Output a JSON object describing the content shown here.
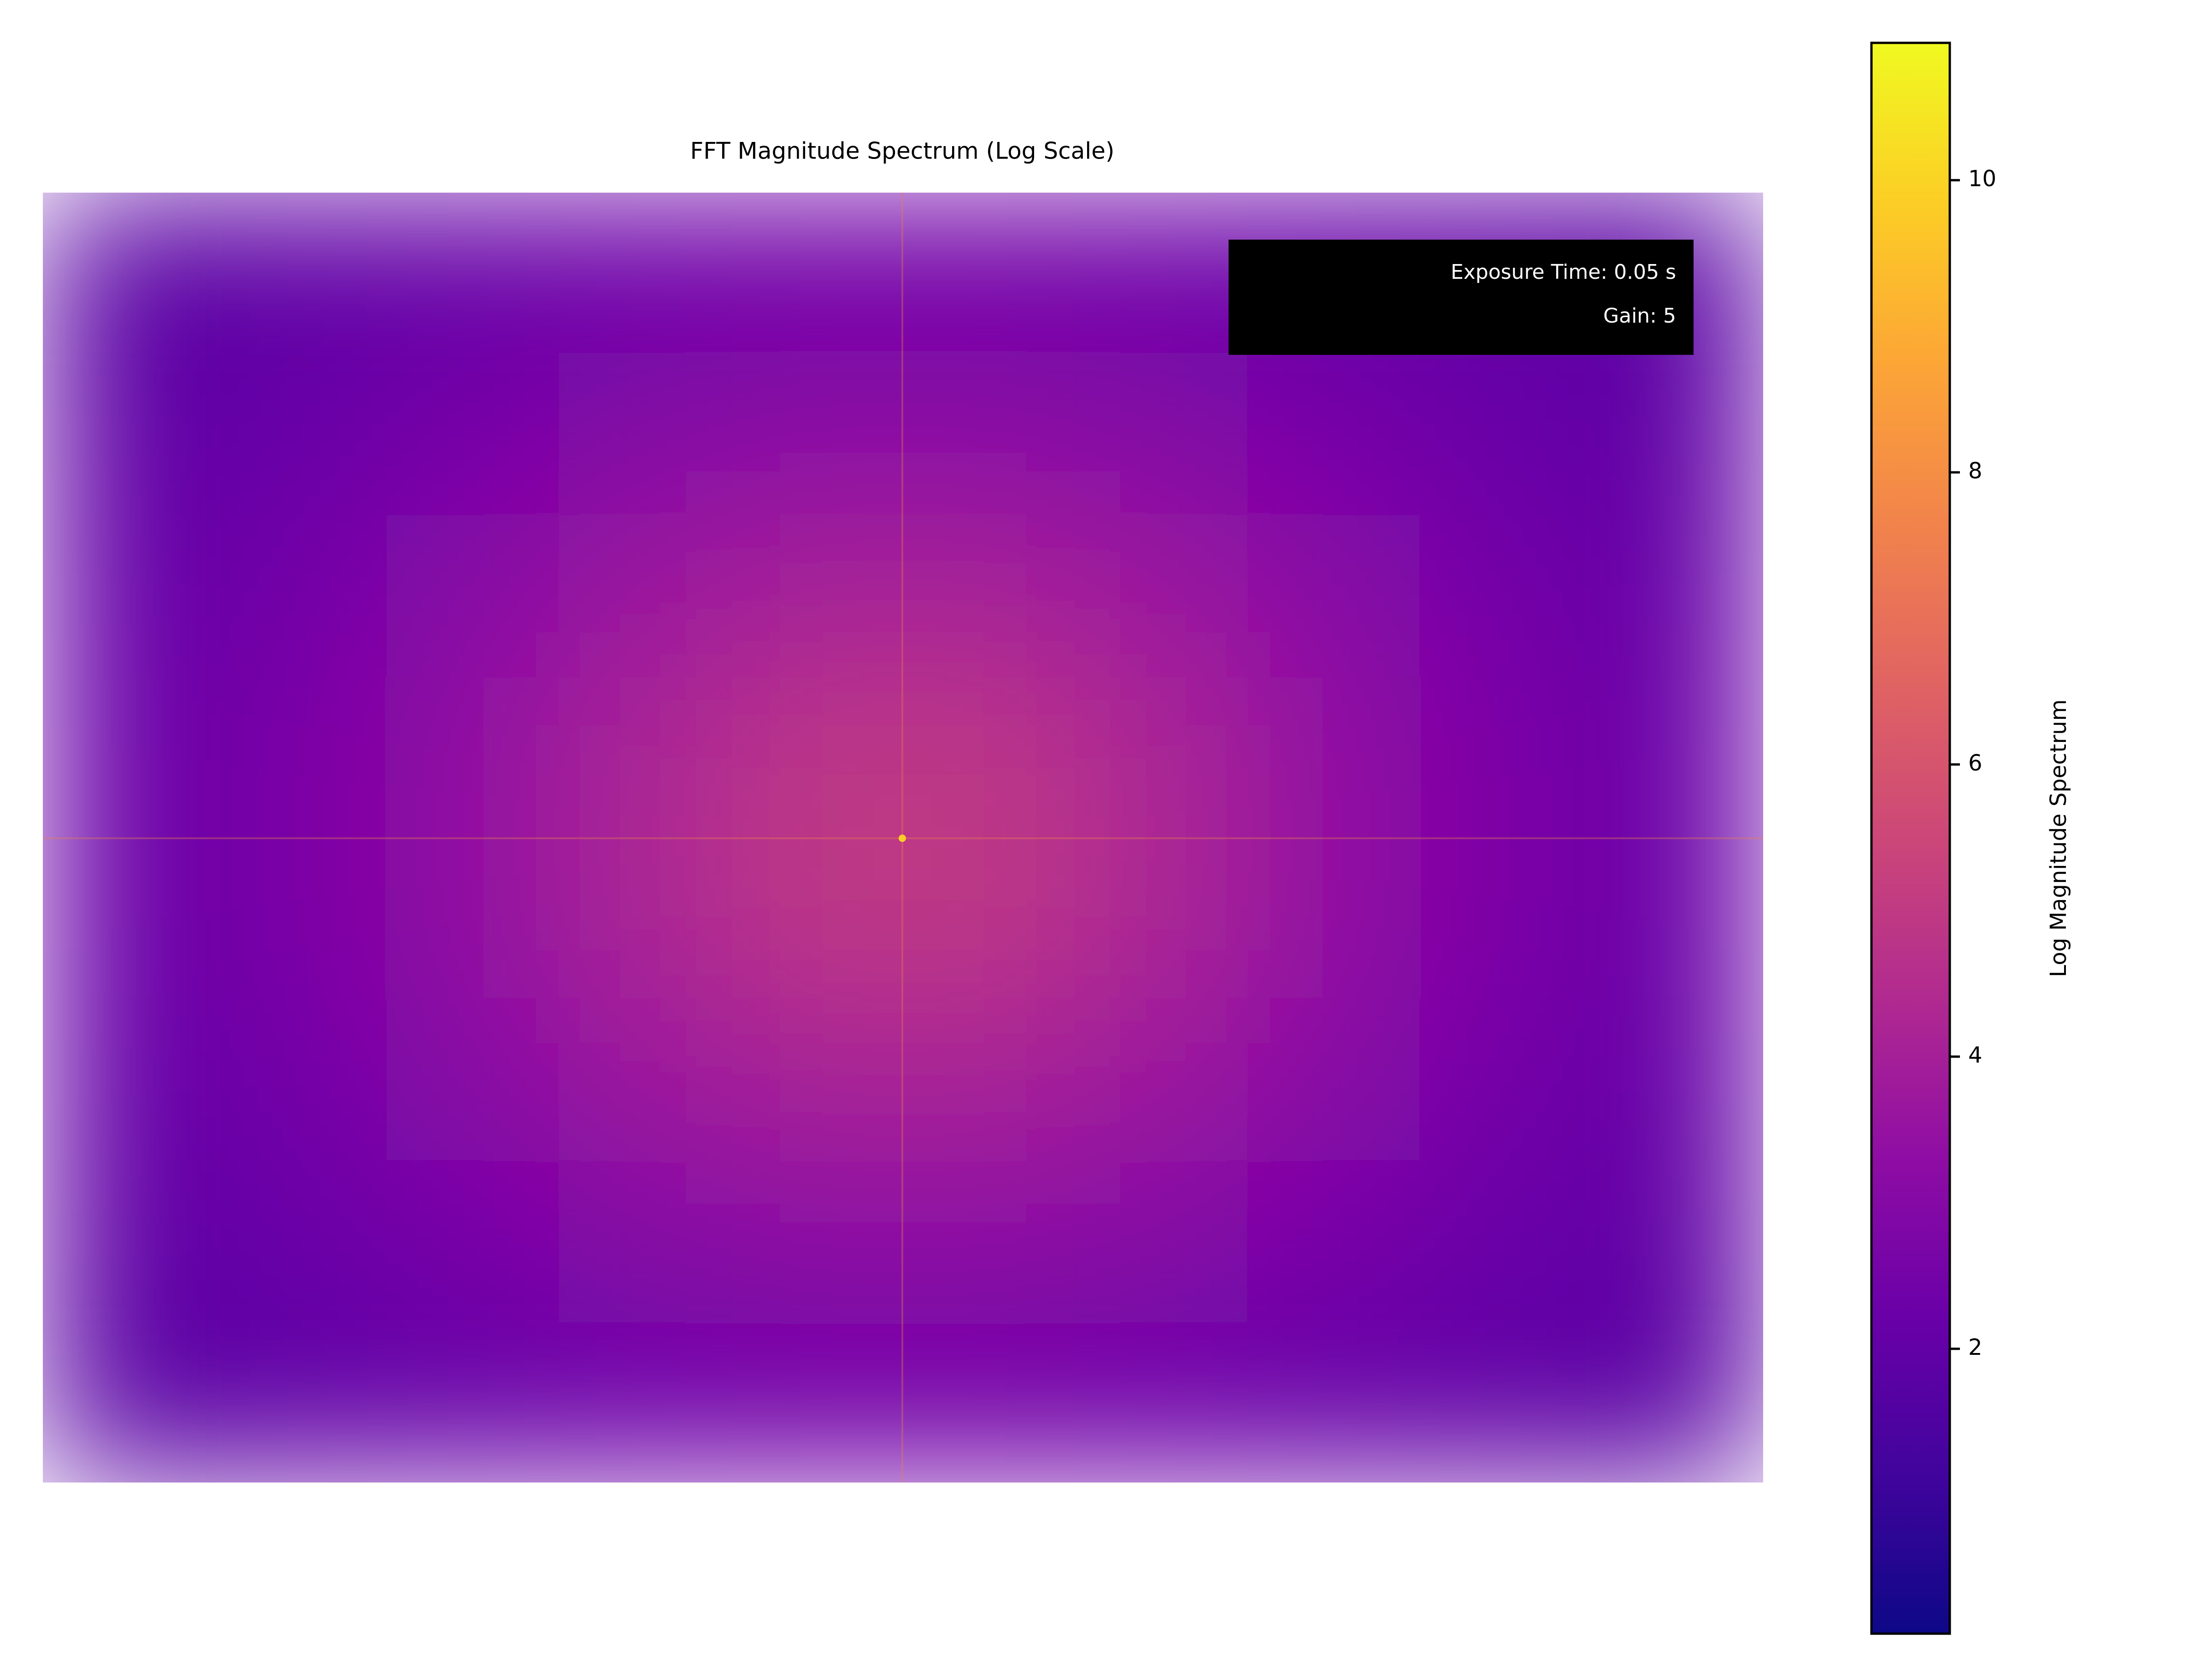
{
  "chart_data": {
    "type": "heatmap",
    "title": "FFT Magnitude Spectrum (Log Scale)",
    "annotation": [
      "Exposure Time: 0.05 s",
      "Gain: 5"
    ],
    "colormap": "plasma",
    "z": [
      [
        1.7,
        1.9,
        2.1,
        2.3,
        2.4,
        2.4,
        2.3,
        2.1,
        1.9,
        1.7
      ],
      [
        1.9,
        2.2,
        2.6,
        3.0,
        3.2,
        3.2,
        3.0,
        2.6,
        2.2,
        1.9
      ],
      [
        2.1,
        2.5,
        3.1,
        3.7,
        4.1,
        4.1,
        3.7,
        3.1,
        2.5,
        2.1
      ],
      [
        2.2,
        2.7,
        3.4,
        4.2,
        4.9,
        4.9,
        4.2,
        3.4,
        2.7,
        2.2
      ],
      [
        2.2,
        2.7,
        3.4,
        4.2,
        4.9,
        4.9,
        4.2,
        3.4,
        2.7,
        2.2
      ],
      [
        2.1,
        2.5,
        3.1,
        3.7,
        4.1,
        4.1,
        3.7,
        3.1,
        2.5,
        2.1
      ],
      [
        1.9,
        2.2,
        2.6,
        3.0,
        3.2,
        3.2,
        3.0,
        2.6,
        2.2,
        1.9
      ],
      [
        1.7,
        1.9,
        2.1,
        2.3,
        2.4,
        2.4,
        2.3,
        2.1,
        1.9,
        1.7
      ]
    ],
    "colorbar": {
      "label": "Log Magnitude Spectrum",
      "lim": [
        0.05,
        10.94
      ],
      "ticks": [
        2,
        4,
        6,
        8,
        10
      ]
    }
  }
}
